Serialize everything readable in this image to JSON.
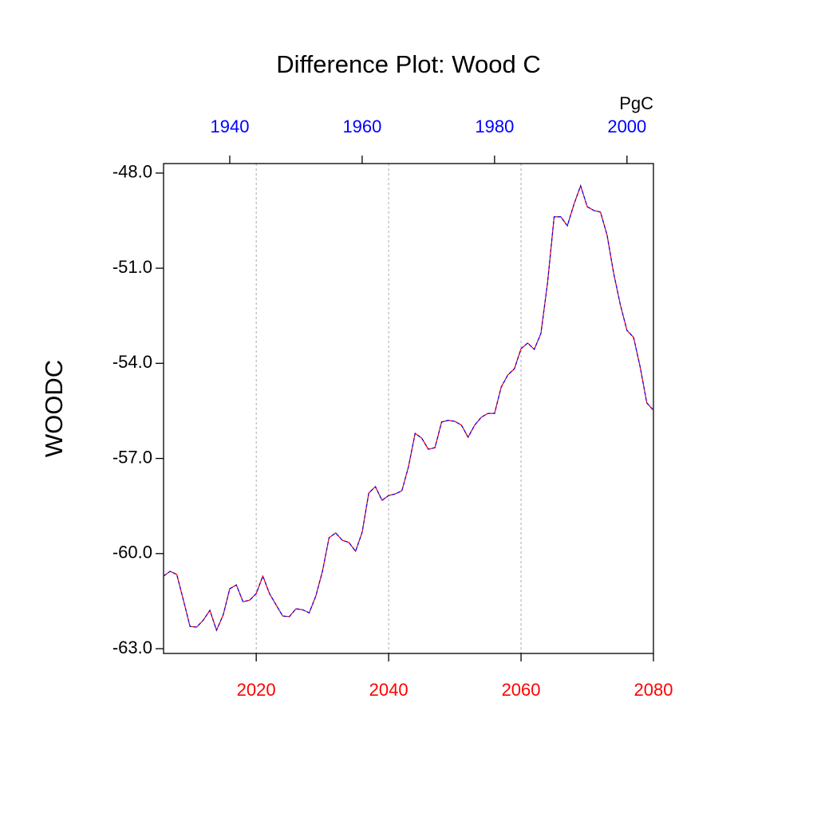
{
  "chart_data": {
    "type": "line",
    "title": "Difference Plot: Wood C",
    "ylabel": "WOODC",
    "units": "PgC",
    "x": [
      2006,
      2007,
      2008,
      2009,
      2010,
      2011,
      2012,
      2013,
      2014,
      2015,
      2016,
      2017,
      2018,
      2019,
      2020,
      2021,
      2022,
      2023,
      2024,
      2025,
      2026,
      2027,
      2028,
      2029,
      2030,
      2031,
      2032,
      2033,
      2034,
      2035,
      2036,
      2037,
      2038,
      2039,
      2040,
      2041,
      2042,
      2043,
      2044,
      2045,
      2046,
      2047,
      2048,
      2049,
      2050,
      2051,
      2052,
      2053,
      2054,
      2055,
      2056,
      2057,
      2058,
      2059,
      2060,
      2061,
      2062,
      2063,
      2064,
      2065,
      2066,
      2067,
      2068,
      2069,
      2070,
      2071,
      2072,
      2073,
      2074,
      2075,
      2076,
      2077,
      2078,
      2079,
      2080
    ],
    "values": [
      -60.71,
      -60.56,
      -60.66,
      -61.47,
      -62.3,
      -62.32,
      -62.1,
      -61.79,
      -62.42,
      -61.94,
      -61.11,
      -60.99,
      -61.52,
      -61.47,
      -61.26,
      -60.71,
      -61.26,
      -61.62,
      -61.97,
      -61.99,
      -61.74,
      -61.77,
      -61.87,
      -61.34,
      -60.56,
      -59.5,
      -59.35,
      -59.58,
      -59.65,
      -59.93,
      -59.33,
      -58.09,
      -57.89,
      -58.32,
      -58.17,
      -58.12,
      -58.02,
      -57.26,
      -56.21,
      -56.36,
      -56.71,
      -56.66,
      -55.85,
      -55.8,
      -55.83,
      -55.95,
      -56.33,
      -55.95,
      -55.7,
      -55.58,
      -55.58,
      -54.75,
      -54.37,
      -54.17,
      -53.54,
      -53.36,
      -53.56,
      -53.06,
      -51.47,
      -49.38,
      -49.38,
      -49.66,
      -48.98,
      -48.4,
      -49.06,
      -49.18,
      -49.23,
      -49.96,
      -51.17,
      -52.15,
      -52.96,
      -53.18,
      -54.12,
      -55.25,
      -55.48
    ],
    "line_colors": [
      "#ff0000",
      "#0000ff"
    ],
    "xlim": [
      2006,
      2080
    ],
    "xticks": [
      2020,
      2040,
      2060,
      2080
    ],
    "xtick_color": "#ff0000",
    "x2lim": [
      1930,
      2004
    ],
    "x2ticks": [
      1940,
      1960,
      1980,
      2000
    ],
    "x2tick_color": "#0000ff",
    "ylim": [
      -63.15,
      -47.7
    ],
    "yticks": [
      {
        "value": -48,
        "label": "-48.0"
      },
      {
        "value": -51,
        "label": "-51.0"
      },
      {
        "value": -54,
        "label": "-54.0"
      },
      {
        "value": -57,
        "label": "-57.0"
      },
      {
        "value": -60,
        "label": "-60.0"
      },
      {
        "value": -63,
        "label": "-63.0"
      }
    ],
    "grid": true
  }
}
